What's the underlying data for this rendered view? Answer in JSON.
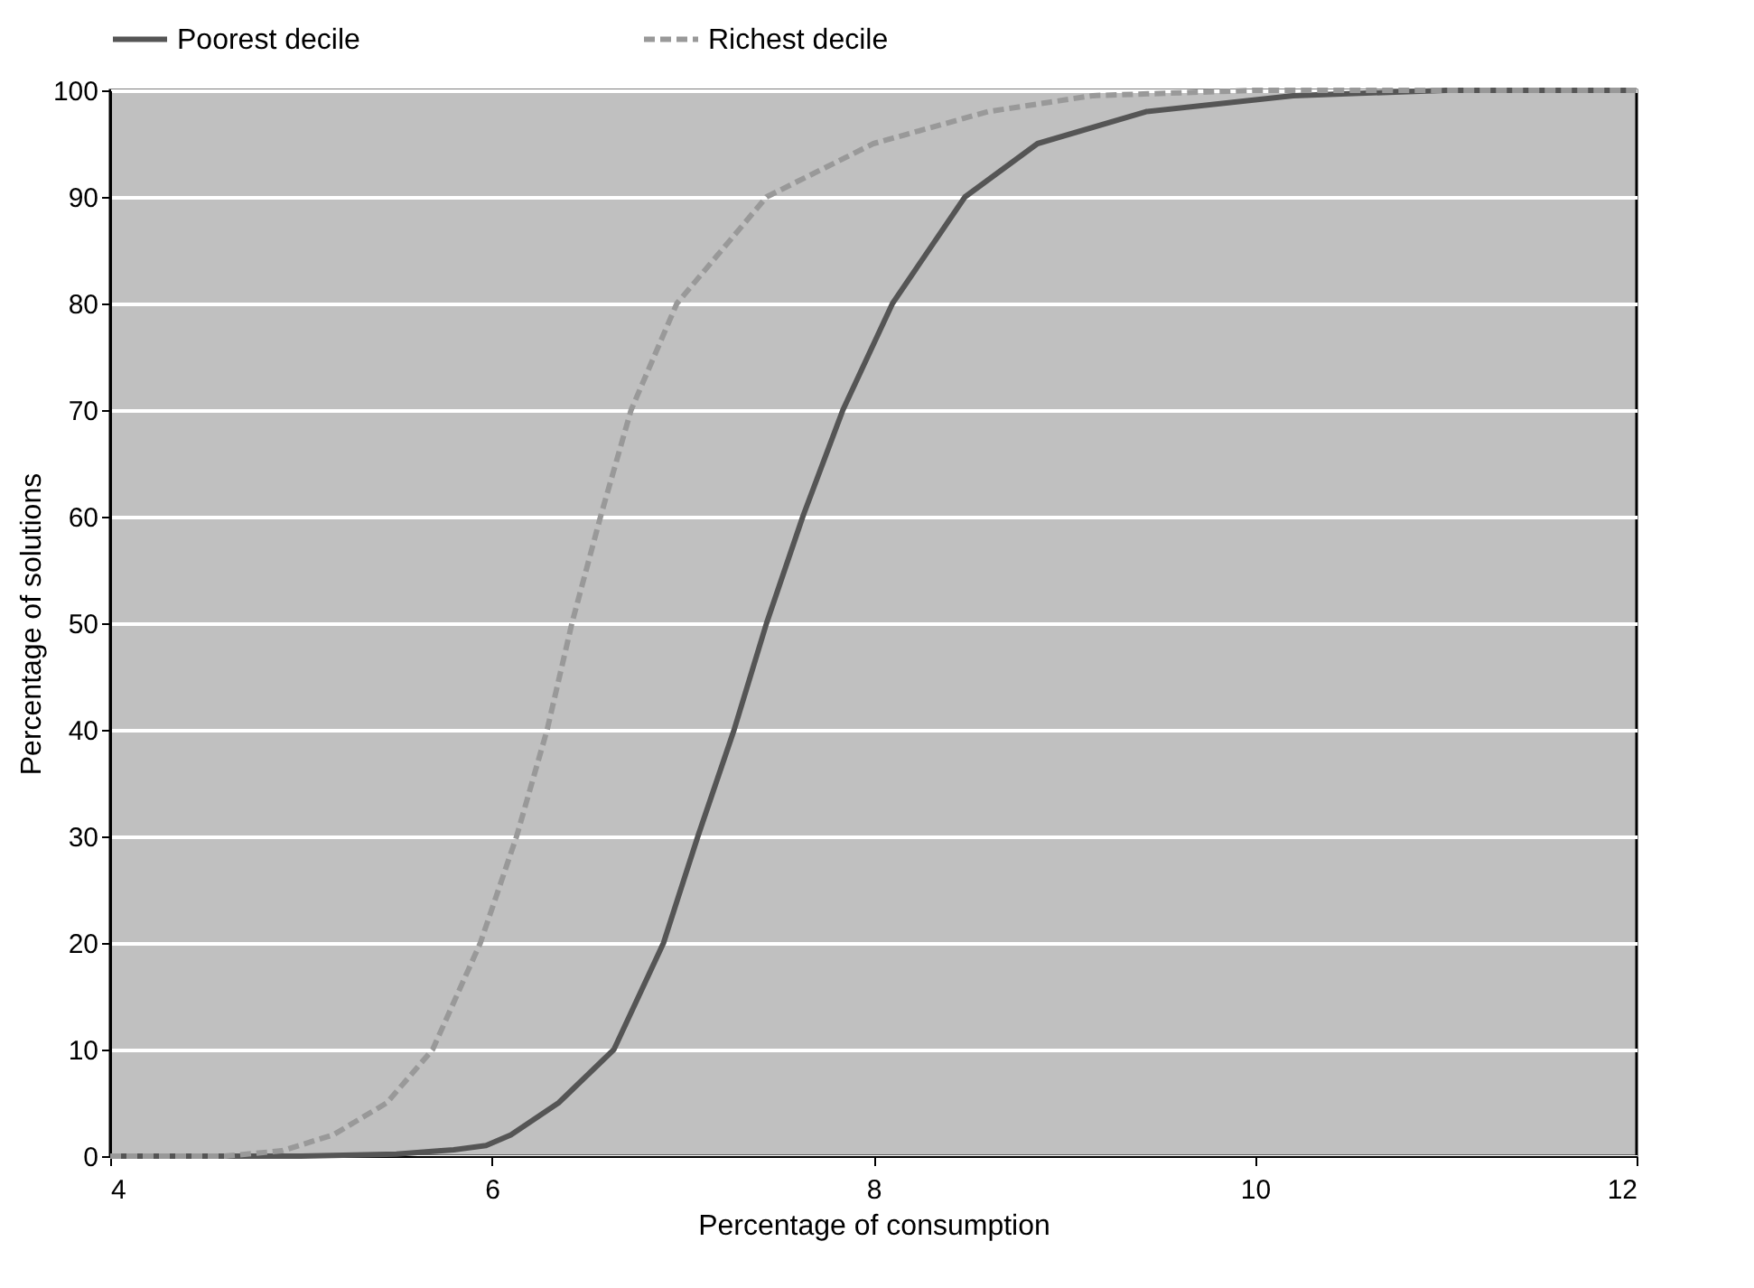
{
  "chart_data": {
    "type": "line",
    "xlabel": "Percentage of consumption",
    "ylabel": "Percentage of solutions",
    "xlim": [
      4,
      12
    ],
    "xticks": [
      4,
      6,
      8,
      10,
      12
    ],
    "ylim": [
      0,
      100
    ],
    "yticks": [
      0,
      10,
      20,
      30,
      40,
      50,
      60,
      70,
      80,
      90,
      100
    ],
    "grid": "y",
    "legend": "top",
    "marker": "none",
    "series": [
      {
        "name": "Poorest decile",
        "color": "#555555",
        "line_style": "solid",
        "x": [
          4,
          5,
          5.5,
          5.8,
          5.97,
          6.1,
          6.35,
          6.64,
          6.9,
          7.08,
          7.27,
          7.44,
          7.63,
          7.84,
          8.1,
          8.48,
          8.86,
          9.43,
          10.2,
          11,
          12
        ],
        "values": [
          0,
          0,
          0.2,
          0.6,
          1,
          2,
          5,
          10,
          20,
          30,
          40,
          50,
          60,
          70,
          80,
          90,
          95,
          98,
          99.5,
          100,
          100
        ]
      },
      {
        "name": "Richest decile",
        "color": "#999999",
        "line_style": "dashed",
        "x": [
          4,
          4.6,
          4.9,
          5.17,
          5.45,
          5.69,
          5.94,
          6.13,
          6.29,
          6.42,
          6.57,
          6.73,
          6.97,
          7.44,
          8.0,
          8.6,
          9.15,
          10,
          12
        ],
        "values": [
          0,
          0,
          0.5,
          2,
          5,
          10,
          20,
          30,
          40,
          50,
          60,
          70,
          80,
          90,
          95,
          98,
          99.5,
          100,
          100
        ]
      }
    ]
  }
}
